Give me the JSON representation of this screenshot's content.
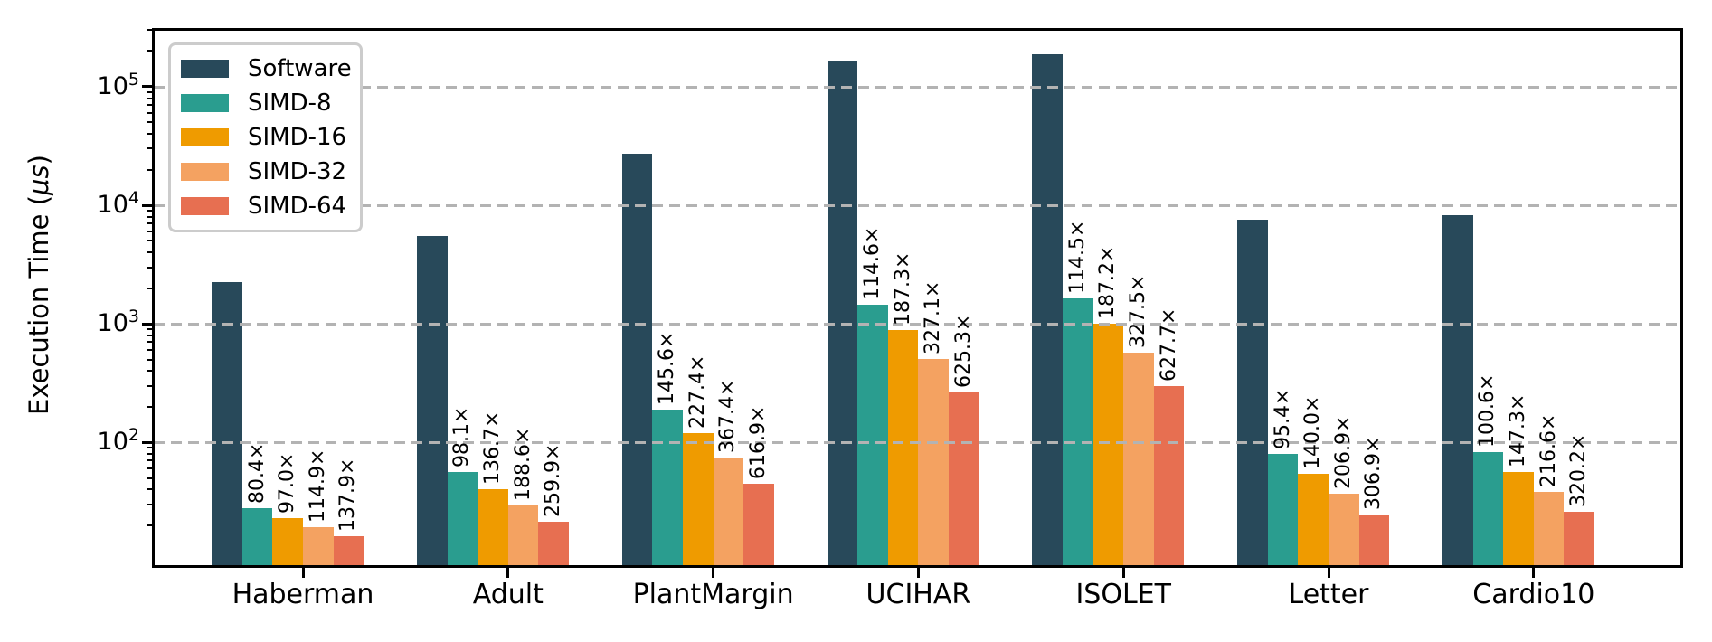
{
  "chart_data": {
    "type": "bar",
    "title": "",
    "xlabel": "",
    "ylabel": {
      "prefix": "Execution Time (",
      "italic": "μs",
      "suffix": ")"
    },
    "yscale": "log",
    "ylim": [
      9.2,
      302000
    ],
    "grid": "horizontal dashed gridlines at each decade, drawn over bars",
    "legend_position": "upper left",
    "yticks": [
      {
        "value": 100,
        "base": "10",
        "exp": "2"
      },
      {
        "value": 1000,
        "base": "10",
        "exp": "3"
      },
      {
        "value": 10000,
        "base": "10",
        "exp": "4"
      },
      {
        "value": 100000,
        "base": "10",
        "exp": "5"
      }
    ],
    "categories": [
      "Haberman",
      "Adult",
      "PlantMargin",
      "UCIHAR",
      "ISOLET",
      "Letter",
      "Cardio10"
    ],
    "series": [
      {
        "name": "Software",
        "color": "#28495a",
        "values": [
          2230,
          5520,
          27400,
          166000,
          187000,
          7580,
          8280
        ],
        "speedup_labels": [
          "",
          "",
          "",
          "",
          "",
          "",
          ""
        ]
      },
      {
        "name": "SIMD-8",
        "color": "#2a9d8f",
        "values": [
          27.7,
          56.3,
          188.2,
          1448.5,
          1633.2,
          79.5,
          82.3
        ],
        "speedup_labels": [
          "80.4×",
          "98.1×",
          "145.6×",
          "114.6×",
          "114.5×",
          "95.4×",
          "100.6×"
        ]
      },
      {
        "name": "SIMD-16",
        "color": "#ef9b00",
        "values": [
          23.0,
          40.4,
          120.5,
          886.3,
          999.0,
          54.1,
          56.2
        ],
        "speedup_labels": [
          "97.0×",
          "136.7×",
          "227.4×",
          "187.3×",
          "187.2×",
          "140.0×",
          "147.3×"
        ]
      },
      {
        "name": "SIMD-32",
        "color": "#f4a261",
        "values": [
          19.4,
          29.3,
          74.6,
          507.5,
          571.0,
          36.6,
          38.2
        ],
        "speedup_labels": [
          "114.9×",
          "188.6×",
          "367.4×",
          "327.1×",
          "327.5×",
          "206.9×",
          "216.6×"
        ]
      },
      {
        "name": "SIMD-64",
        "color": "#e76f51",
        "values": [
          16.2,
          21.2,
          44.4,
          265.5,
          297.9,
          24.7,
          25.9
        ],
        "speedup_labels": [
          "137.9×",
          "259.9×",
          "616.9×",
          "625.3×",
          "627.7×",
          "306.9×",
          "320.2×"
        ]
      }
    ]
  }
}
